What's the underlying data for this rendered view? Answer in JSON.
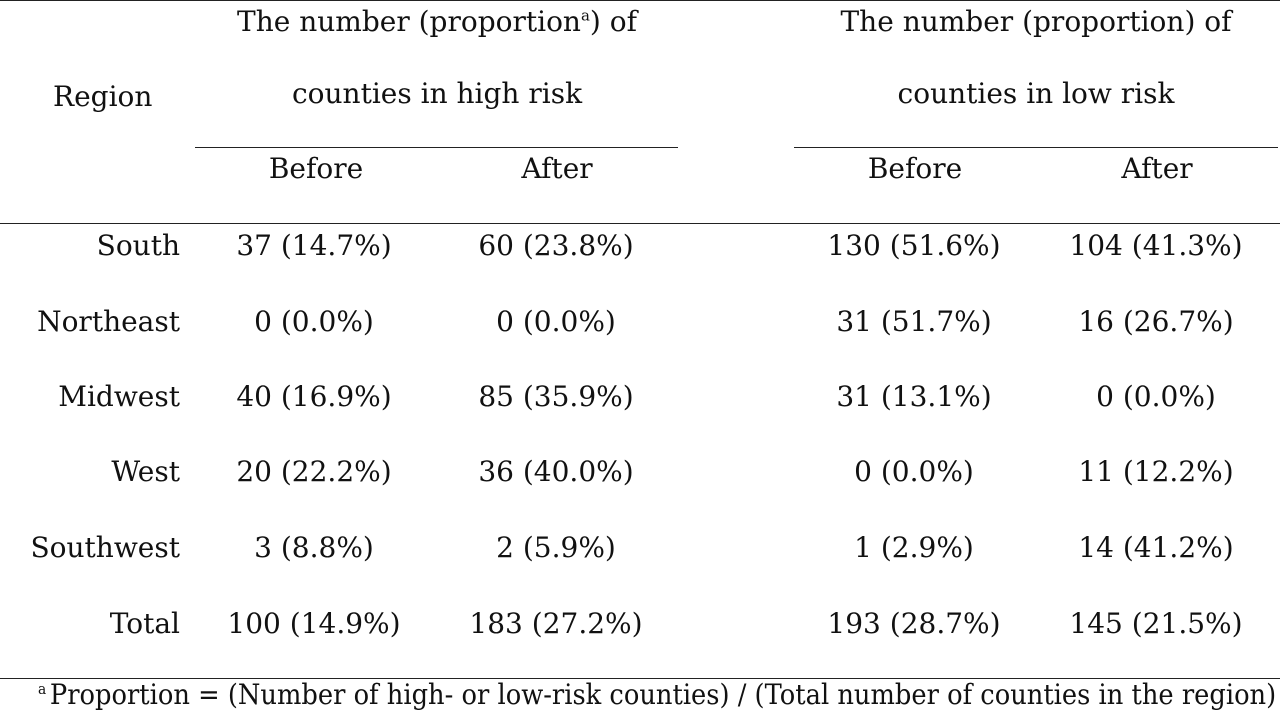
{
  "table": {
    "region_header": "Region",
    "high_group": {
      "line1_pre": "The number (proportion",
      "line1_sup": "a",
      "line1_post": ") of",
      "line2": "counties in high risk"
    },
    "low_group": {
      "line1": "The number (proportion) of",
      "line2": "counties in low risk"
    },
    "sub_headers": [
      "Before",
      "After",
      "Before",
      "After"
    ],
    "rows": [
      {
        "region": "South",
        "high_before": "37 (14.7%)",
        "high_after": "60 (23.8%)",
        "low_before": "130 (51.6%)",
        "low_after": "104 (41.3%)"
      },
      {
        "region": "Northeast",
        "high_before": "0 (0.0%)",
        "high_after": "0 (0.0%)",
        "low_before": "31 (51.7%)",
        "low_after": "16 (26.7%)"
      },
      {
        "region": "Midwest",
        "high_before": "40 (16.9%)",
        "high_after": "85 (35.9%)",
        "low_before": "31 (13.1%)",
        "low_after": "0 (0.0%)"
      },
      {
        "region": "West",
        "high_before": "20 (22.2%)",
        "high_after": "36 (40.0%)",
        "low_before": "0 (0.0%)",
        "low_after": "11 (12.2%)"
      },
      {
        "region": "Southwest",
        "high_before": "3 (8.8%)",
        "high_after": "2 (5.9%)",
        "low_before": "1 (2.9%)",
        "low_after": "14 (41.2%)"
      },
      {
        "region": "Total",
        "high_before": "100 (14.9%)",
        "high_after": "183 (27.2%)",
        "low_before": "193 (28.7%)",
        "low_after": "145 (21.5%)"
      }
    ]
  },
  "footnote": {
    "marker": "a",
    "text": "Proportion = (Number of high- or low-risk counties) / (Total number of counties in the region)"
  }
}
